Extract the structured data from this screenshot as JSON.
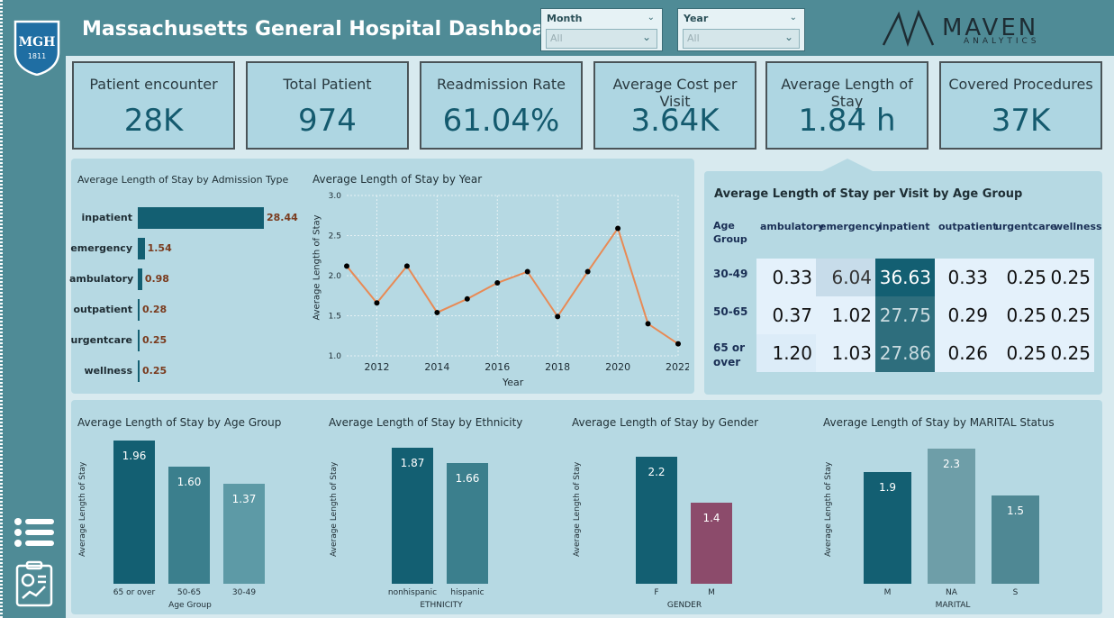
{
  "header": {
    "title": "Massachusetts General Hospital Dashboard",
    "logo_text": "MGH",
    "logo_year": "1811",
    "brand": "MAVEN",
    "brand_sub": "ANALYTICS"
  },
  "filters": {
    "month": {
      "label": "Month",
      "value": "All"
    },
    "year": {
      "label": "Year",
      "value": "All"
    }
  },
  "kpis": [
    {
      "label": "Patient encounter",
      "value": "28K"
    },
    {
      "label": "Total Patient",
      "value": "974"
    },
    {
      "label": "Readmission Rate",
      "value": "61.04%"
    },
    {
      "label": "Average Cost per Visit",
      "value": "3.64K"
    },
    {
      "label": "Average Length of Stay",
      "value": "1.84 h"
    },
    {
      "label": "Covered Procedures",
      "value": "37K"
    }
  ],
  "admission": {
    "title": "Average Length of Stay by Admission Type",
    "items": [
      {
        "label": "inpatient",
        "value": "28.44",
        "num": 28.44
      },
      {
        "label": "emergency",
        "value": "1.54",
        "num": 1.54
      },
      {
        "label": "ambulatory",
        "value": "0.98",
        "num": 0.98
      },
      {
        "label": "outpatient",
        "value": "0.28",
        "num": 0.28
      },
      {
        "label": "urgentcare",
        "value": "0.25",
        "num": 0.25
      },
      {
        "label": "wellness",
        "value": "0.25",
        "num": 0.25
      }
    ]
  },
  "year_chart": {
    "title": "Average Length of Stay by Year",
    "xlabel": "Year",
    "ylabel": "Average Length of Stay",
    "yticks": [
      "3.0",
      "2.5",
      "2.0",
      "1.5",
      "1.0"
    ],
    "xticks": [
      "2012",
      "2014",
      "2016",
      "2018",
      "2020",
      "2022"
    ]
  },
  "chart_data": {
    "type": "line",
    "x": [
      2011,
      2012,
      2013,
      2014,
      2015,
      2016,
      2017,
      2018,
      2019,
      2020,
      2021,
      2022
    ],
    "y": [
      2.12,
      1.66,
      2.12,
      1.54,
      1.71,
      1.91,
      2.05,
      1.49,
      2.05,
      2.59,
      1.4,
      1.15
    ],
    "ylim": [
      1.0,
      3.0
    ],
    "xlim": [
      2011,
      2022
    ]
  },
  "matrix": {
    "title": "Average Length of Stay per Visit by Age Group",
    "row_header": "Age Group",
    "columns": [
      "ambulatory",
      "emergency",
      "inpatient",
      "outpatient",
      "urgentcare",
      "wellness"
    ],
    "rows": [
      {
        "label": "30-49",
        "values": [
          "0.33",
          "6.04",
          "36.63",
          "0.33",
          "0.25",
          "0.25"
        ]
      },
      {
        "label": "50-65",
        "values": [
          "0.37",
          "1.02",
          "27.75",
          "0.29",
          "0.25",
          "0.25"
        ]
      },
      {
        "label": "65 or over",
        "values": [
          "1.20",
          "1.03",
          "27.86",
          "0.26",
          "0.25",
          "0.25"
        ]
      }
    ]
  },
  "age_chart": {
    "title": "Average Length of Stay by Age Group",
    "xlabel": "Age Group",
    "ylabel": "Average Length of Stay",
    "bars": [
      {
        "cat": "65 or over",
        "label": "1.96",
        "v": 1.96
      },
      {
        "cat": "50-65",
        "label": "1.60",
        "v": 1.6
      },
      {
        "cat": "30-49",
        "label": "1.37",
        "v": 1.37
      }
    ]
  },
  "eth_chart": {
    "title": "Average Length of Stay by Ethnicity",
    "xlabel": "ETHNICITY",
    "ylabel": "Average Length of Stay",
    "bars": [
      {
        "cat": "nonhispanic",
        "label": "1.87",
        "v": 1.87
      },
      {
        "cat": "hispanic",
        "label": "1.66",
        "v": 1.66
      }
    ]
  },
  "gender_chart": {
    "title": "Average Length of Stay by Gender",
    "xlabel": "GENDER",
    "ylabel": "Average Length of Stay",
    "bars": [
      {
        "cat": "F",
        "label": "2.2",
        "v": 2.2
      },
      {
        "cat": "M",
        "label": "1.4",
        "v": 1.4
      }
    ]
  },
  "marital_chart": {
    "title": "Average Length of Stay by MARITAL Status",
    "xlabel": "MARITAL",
    "ylabel": "Average Length of Stay",
    "bars": [
      {
        "cat": "M",
        "label": "1.9",
        "v": 1.9
      },
      {
        "cat": "NA",
        "label": "2.3",
        "v": 2.3
      },
      {
        "cat": "S",
        "label": "1.5",
        "v": 1.5
      }
    ]
  },
  "colors": {
    "dark": "#135f72",
    "mid": "#3b7f8d",
    "light": "#5d9aa6",
    "pale": "#6e9ea8",
    "male": "#8c4b6b",
    "line": "#e88a55"
  }
}
